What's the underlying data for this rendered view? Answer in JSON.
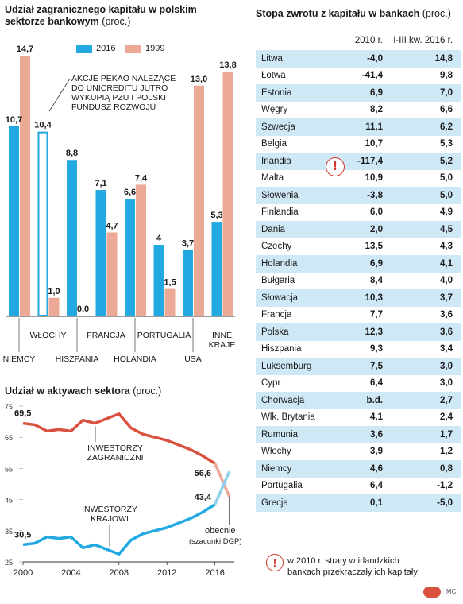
{
  "left_top_title": {
    "bold": "Udział zagranicznego kapitału w polskim sektorze bankowym",
    "sub": "(proc.)"
  },
  "left_bottom_title": {
    "bold": "Udział w aktywach sektora",
    "sub": "(proc.)"
  },
  "right_title": {
    "bold": "Stopa zwrotu z kapitału w bankach",
    "sub": "(proc.)"
  },
  "colors": {
    "blue": "#23a9e1",
    "salmon": "#eba996",
    "red": "#d9513f",
    "table_stripe": "#cfe8f6"
  },
  "bar_annotation": [
    "AKCJE PEKAO NALEŻĄCE",
    "DO UNICREDITU JUTRO",
    "WYKUPIĄ PZU I POLSKI",
    "FUNDUSZ ROZWOJU"
  ],
  "line_annotations": {
    "foreign": [
      "INWESTORZY",
      "ZAGRANICZNI"
    ],
    "domestic": [
      "INWESTORZY",
      "KRAJOWI"
    ],
    "now": [
      "obecnie"
    ],
    "now_sub": "(szacunki DGP)"
  },
  "table": {
    "headers": [
      "2010 r.",
      "I-III kw. 2016 r."
    ],
    "rows": [
      [
        "Litwa",
        "-4,0",
        "14,8"
      ],
      [
        "Łotwa",
        "-41,4",
        "9,8"
      ],
      [
        "Estonia",
        "6,9",
        "7,0"
      ],
      [
        "Węgry",
        "8,2",
        "6,6"
      ],
      [
        "Szwecja",
        "11,1",
        "6,2"
      ],
      [
        "Belgia",
        "10,7",
        "5,3"
      ],
      [
        "Irlandia",
        "-117,4",
        "5,2"
      ],
      [
        "Malta",
        "10,9",
        "5,0"
      ],
      [
        "Słowenia",
        "-3,8",
        "5,0"
      ],
      [
        "Finlandia",
        "6,0",
        "4,9"
      ],
      [
        "Dania",
        "2,0",
        "4,5"
      ],
      [
        "Czechy",
        "13,5",
        "4,3"
      ],
      [
        "Holandia",
        "6,9",
        "4,1"
      ],
      [
        "Bułgaria",
        "8,4",
        "4,0"
      ],
      [
        "Słowacja",
        "10,3",
        "3,7"
      ],
      [
        "Francja",
        "7,7",
        "3,6"
      ],
      [
        "Polska",
        "12,3",
        "3,6"
      ],
      [
        "Hiszpania",
        "9,3",
        "3,4"
      ],
      [
        "Luksemburg",
        "7,5",
        "3,0"
      ],
      [
        "Cypr",
        "6,4",
        "3,0"
      ],
      [
        "Chorwacja",
        "b.d.",
        "2,7"
      ],
      [
        "Wlk. Brytania",
        "4,1",
        "2,4"
      ],
      [
        "Rumunia",
        "3,6",
        "1,7"
      ],
      [
        "Włochy",
        "3,9",
        "1,2"
      ],
      [
        "Niemcy",
        "4,6",
        "0,8"
      ],
      [
        "Portugalia",
        "6,4",
        "-1,2"
      ],
      [
        "Grecja",
        "0,1",
        "-5,0"
      ]
    ],
    "footnote_icon": "!",
    "footnote": [
      "w 2010 r. straty w irlandzkich",
      "bankach przekraczały ich kapitały"
    ]
  },
  "credit": "MC",
  "chart_data": [
    {
      "type": "bar",
      "categories": [
        "NIEMCY",
        "WŁOCHY",
        "HISZPANIA",
        "FRANCJA",
        "HOLANDIA",
        "PORTUGALIA",
        "USA",
        "INNE KRAJE"
      ],
      "series": [
        {
          "name": "2016",
          "values": [
            10.7,
            10.4,
            8.8,
            7.1,
            6.6,
            4,
            3.7,
            5.3
          ]
        },
        {
          "name": "1999",
          "values": [
            14.7,
            1.0,
            0.0,
            4.7,
            7.4,
            1.5,
            13.0,
            13.8
          ]
        }
      ],
      "labels_2016": [
        "10,7",
        "10,4",
        "8,8",
        "7,1",
        "6,6",
        "4",
        "3,7",
        "5,3"
      ],
      "labels_1999": [
        "14,7",
        "1,0",
        "0,0",
        "4,7",
        "7,4",
        "1,5",
        "13,0",
        "13,8"
      ],
      "legend": [
        "2016",
        "1999"
      ],
      "ylim": [
        0,
        15
      ]
    },
    {
      "type": "line",
      "xlim": [
        2000,
        2017.3
      ],
      "ylim": [
        25,
        75
      ],
      "x_ticks": [
        "2000",
        "2004",
        "2008",
        "2012",
        "2016"
      ],
      "y_ticks": [
        "75",
        "65",
        "55",
        "45",
        "35",
        "25"
      ],
      "series": [
        {
          "name": "INWESTORZY ZAGRANICZNI",
          "x": [
            2000,
            2001,
            2002,
            2003,
            2004,
            2005,
            2006,
            2007,
            2008,
            2009,
            2010,
            2011,
            2012,
            2013,
            2014,
            2015,
            2016
          ],
          "y": [
            69.5,
            69,
            67,
            67.5,
            67,
            70.5,
            69.5,
            71,
            72.5,
            68,
            66,
            65,
            64,
            62.5,
            61,
            59,
            56.6
          ]
        },
        {
          "name": "INWESTORZY KRAJOWI",
          "x": [
            2000,
            2001,
            2002,
            2003,
            2004,
            2005,
            2006,
            2007,
            2008,
            2009,
            2010,
            2011,
            2012,
            2013,
            2014,
            2015,
            2016
          ],
          "y": [
            30.5,
            31,
            33,
            32.5,
            33,
            29.5,
            30.5,
            29,
            27.5,
            32,
            34,
            35,
            36,
            37.5,
            39,
            41,
            43.4
          ]
        }
      ],
      "estimate": {
        "x": [
          2016,
          2017.2
        ],
        "foreign": [
          56.6,
          46
        ],
        "domestic": [
          43.4,
          54
        ]
      },
      "point_labels": {
        "foreign_start": "69,5",
        "domestic_start": "30,5",
        "foreign_end": "56,6",
        "domestic_end": "43,4"
      }
    }
  ]
}
